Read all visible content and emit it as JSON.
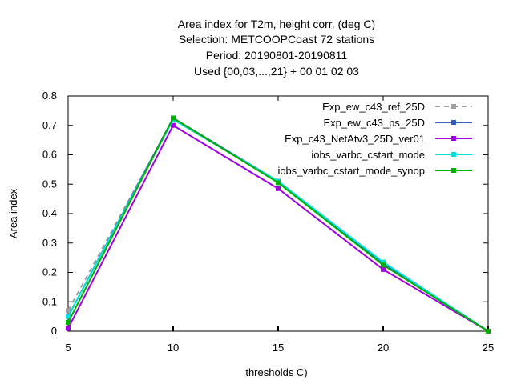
{
  "chart_data": {
    "type": "line",
    "title_lines": [
      "Area index  for T2m, height corr. (deg C)",
      "Selection: METCOOPCoast     72 stations",
      "Period: 20190801-20190811",
      "Used {00,03,...,21} + 00 01 02 03"
    ],
    "xlabel": "thresholds C)",
    "ylabel": "Area index",
    "x": [
      5,
      10,
      15,
      20,
      25
    ],
    "xlim": [
      5,
      25
    ],
    "ylim": [
      0,
      0.8
    ],
    "xticks": [
      "5",
      "10",
      "15",
      "20",
      "25"
    ],
    "yticks": [
      "0",
      "0.1",
      "0.2",
      "0.3",
      "0.4",
      "0.5",
      "0.6",
      "0.7",
      "0.8"
    ],
    "grid": false,
    "legend_position": "top-right",
    "series": [
      {
        "name": "Exp_ew_c43_ref_25D",
        "values": [
          0.07,
          0.72,
          0.51,
          0.23,
          0.0
        ],
        "color": "#a0a0a0",
        "dashed": true
      },
      {
        "name": "Exp_ew_c43_ps_25D",
        "values": [
          0.05,
          0.725,
          0.51,
          0.23,
          0.0
        ],
        "color": "#3060c0",
        "dashed": false
      },
      {
        "name": "Exp_c43_NetAtv3_25D_ver01",
        "values": [
          0.01,
          0.7,
          0.485,
          0.21,
          0.0
        ],
        "color": "#a000e0",
        "dashed": false
      },
      {
        "name": "iobs_varbc_cstart_mode",
        "values": [
          0.05,
          0.72,
          0.51,
          0.235,
          0.0
        ],
        "color": "#00e0e0",
        "dashed": false
      },
      {
        "name": "iobs_varbc_cstart_mode_synop",
        "values": [
          0.03,
          0.725,
          0.505,
          0.225,
          0.0
        ],
        "color": "#00b000",
        "dashed": false
      }
    ]
  }
}
